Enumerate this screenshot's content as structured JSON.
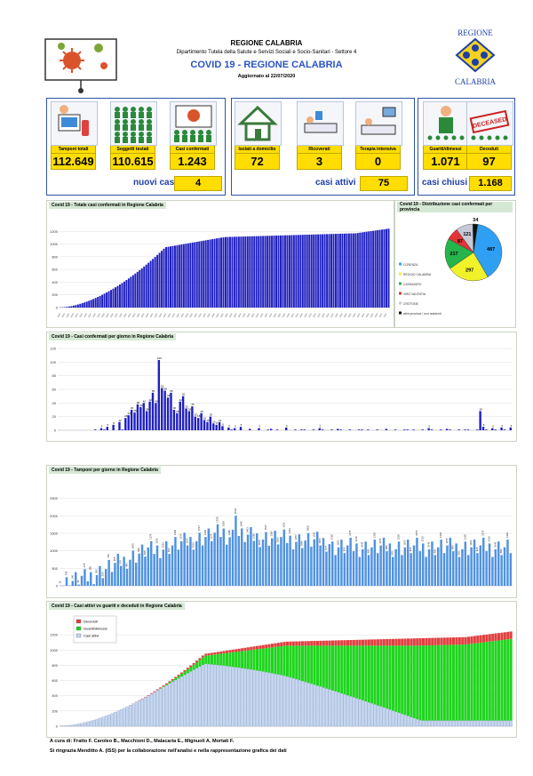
{
  "header": {
    "region": "REGIONE CALABRIA",
    "department": "Dipartimento Tutela della Salute e Servizi Sociali e Socio-Sanitari - Settore 4",
    "title": "COVID 19 - REGIONE CALABRIA",
    "updated": "Aggiornato al 22/07/2020",
    "logo_text_top": "REGIONE",
    "logo_text_bottom": "CALABRIA"
  },
  "colors": {
    "accent": "#2b54c4",
    "yellow": "#ffdd00",
    "bar_blue": "#1f1fbf",
    "bar_light": "#4f92e0",
    "green": "#21d421",
    "red": "#e04040",
    "lightblue": "#c5d6f0"
  },
  "kpis": [
    {
      "label": "Tamponi totali",
      "value": "112.649",
      "icon": "lab-icon"
    },
    {
      "label": "Soggetti testati",
      "value": "110.615",
      "icon": "people-icon"
    },
    {
      "label": "Casi confermati",
      "value": "1.243",
      "icon": "confirmed-icon"
    },
    {
      "label": "Isolati a domicilio",
      "value": "72",
      "icon": "house-icon"
    },
    {
      "label": "Ricoverati",
      "value": "3",
      "icon": "bed-icon"
    },
    {
      "label": "Terapia intensiva",
      "value": "0",
      "icon": "icu-icon"
    },
    {
      "label": "Guariti/dimessi",
      "value": "1.071",
      "icon": "recovered-icon"
    },
    {
      "label": "Deceduti",
      "value": "97",
      "icon": "deceased-icon"
    }
  ],
  "summary": {
    "nuovi_label": "nuovi casi",
    "nuovi_value": "4",
    "attivi_label": "casi attivi",
    "attivi_value": "75",
    "chiusi_label": "casi chiusi",
    "chiusi_value": "1.168",
    "stamp": "DECEASED"
  },
  "chart_data": [
    {
      "type": "bar",
      "title": "Covid 19 - Totale casi confermati in Regione Calabria",
      "ylim": [
        0,
        1400
      ],
      "yticks": [
        0,
        200,
        400,
        600,
        800,
        1000,
        1200
      ],
      "start_value": 3,
      "end_value": 1243,
      "n_days": 150
    },
    {
      "type": "pie",
      "title": "Covid 19 - Distribuzione casi confermati per provincia",
      "values": [
        487,
        297,
        217,
        87,
        121,
        34
      ],
      "colors": [
        "#2e9ff2",
        "#f2f22a",
        "#26b44c",
        "#e23434",
        "#c7c9d9",
        "#111111"
      ],
      "legend": [
        "COSENZA",
        "REGGIO CALABRIA",
        "CATANZARO",
        "VIBO VALENTIA",
        "CROTONE",
        "altre province / non residenti"
      ]
    },
    {
      "type": "bar",
      "title": "Covid 19 - Casi confermati per giorno in Regione Calabria",
      "ylim": [
        0,
        120
      ],
      "yticks": [
        0,
        20,
        40,
        60,
        80,
        100,
        120
      ],
      "peak_value": 103
    },
    {
      "type": "bar",
      "title": "Covid 19 - Tamponi per giorno in Regione Calabria",
      "ylim": [
        0,
        3000
      ],
      "yticks": [
        0,
        500,
        1000,
        1500,
        2000,
        2500
      ],
      "peak_value": 2004
    },
    {
      "type": "area",
      "title": "Covid 19 - Casi attivi vs guariti e deceduti in Regione Calabria",
      "ylim": [
        0,
        1400
      ],
      "yticks": [
        0,
        200,
        400,
        600,
        800,
        1000,
        1200
      ],
      "series": [
        {
          "name": "Deceduti"
        },
        {
          "name": "Guariti/dimessi"
        },
        {
          "name": "Casi attivi"
        }
      ],
      "final": {
        "attivi": 75,
        "guariti": 1071,
        "deceduti": 97
      }
    }
  ],
  "footer": {
    "line1": "A cura di: Fratto F. Caroleo B., Macchioni D., Malacaria E., Mignuoli A. Mortati F.",
    "line2": "Si ringrazia Menditto A. (ISS) per la collaborazione nell'analisi e nella rappresentazione grafica dei dati"
  }
}
